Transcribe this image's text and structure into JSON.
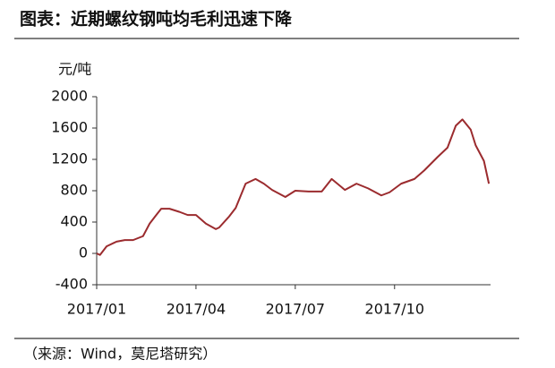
{
  "chart_data": {
    "type": "line",
    "title": "图表：近期螺纹钢吨均毛利迅速下降",
    "y_label": "元/吨",
    "source": "（来源：Wind，莫尼塔研究）",
    "color": "#9b2b2e",
    "x": [
      0,
      0.1,
      0.3,
      0.6,
      0.85,
      1.1,
      1.4,
      1.6,
      1.8,
      1.95,
      2.2,
      2.5,
      2.75,
      3.0,
      3.3,
      3.6,
      3.7,
      4.0,
      4.2,
      4.5,
      4.8,
      5.05,
      5.3,
      5.7,
      6.0,
      6.4,
      6.8,
      7.1,
      7.5,
      7.85,
      8.2,
      8.6,
      8.85,
      9.2,
      9.6,
      9.9,
      10.3,
      10.6,
      10.85,
      11.05,
      11.3,
      11.45,
      11.7,
      11.85
    ],
    "values": [
      0,
      -20,
      90,
      150,
      170,
      170,
      220,
      380,
      490,
      570,
      570,
      530,
      490,
      490,
      380,
      310,
      330,
      470,
      580,
      890,
      950,
      890,
      810,
      720,
      800,
      790,
      790,
      950,
      810,
      890,
      830,
      740,
      780,
      890,
      950,
      1060,
      1230,
      1350,
      1630,
      1710,
      1580,
      1380,
      1180,
      890
    ],
    "xlim": [
      0,
      11.9
    ],
    "xticks": [
      {
        "value": 0,
        "label": "2017/01"
      },
      {
        "value": 3,
        "label": "2017/04"
      },
      {
        "value": 6,
        "label": "2017/07"
      },
      {
        "value": 9,
        "label": "2017/10"
      }
    ],
    "ylim": [
      -400,
      2000
    ],
    "yticks": [
      -400,
      0,
      400,
      800,
      1200,
      1600,
      2000
    ]
  }
}
